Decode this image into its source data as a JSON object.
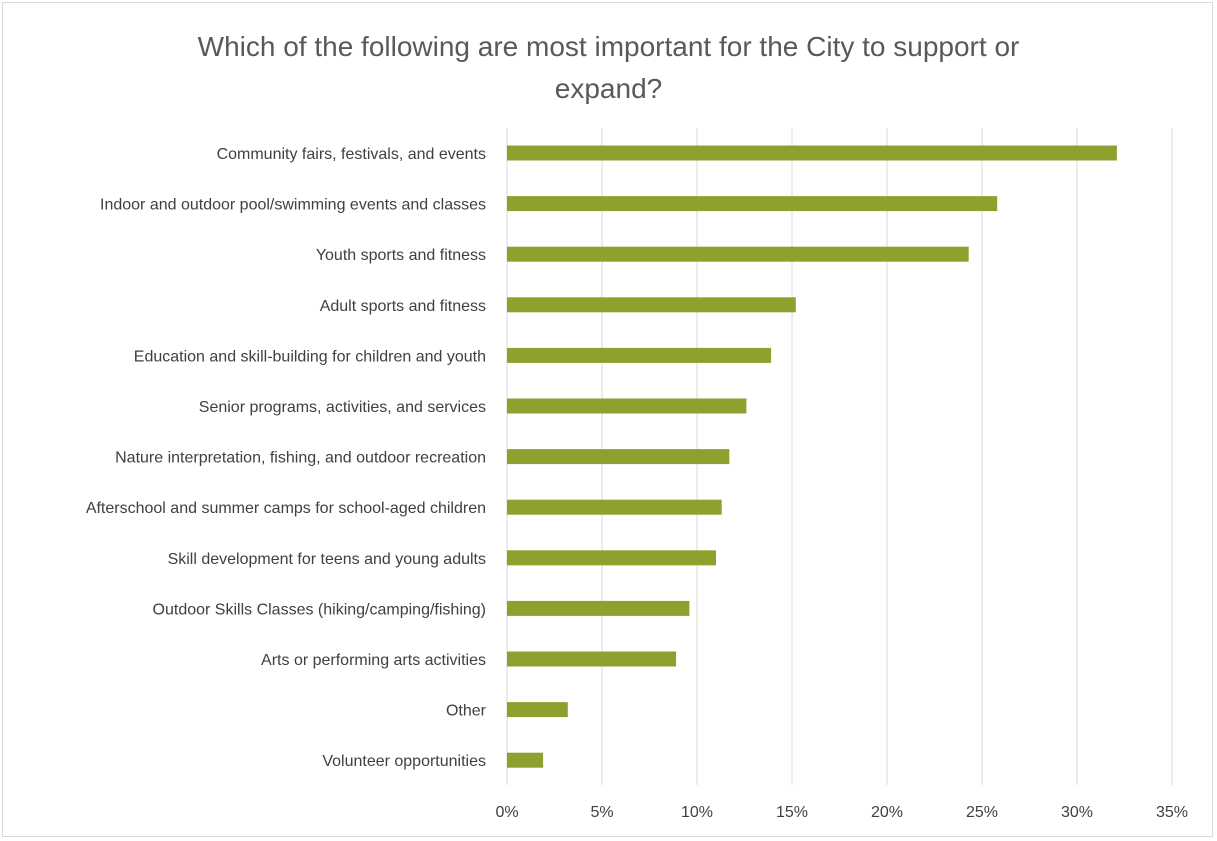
{
  "chart_data": {
    "type": "bar",
    "orientation": "horizontal",
    "title": "Which of the following are most important for the City to support or expand?",
    "categories": [
      "Community fairs, festivals, and events",
      "Indoor and outdoor pool/swimming events and classes",
      "Youth sports and fitness",
      "Adult sports and fitness",
      "Education and skill-building for children and youth",
      "Senior programs, activities, and services",
      "Nature interpretation, fishing, and outdoor recreation",
      "Afterschool and summer camps for school-aged children",
      "Skill development for teens and young adults",
      "Outdoor Skills Classes (hiking/camping/fishing)",
      "Arts or performing arts activities",
      "Other",
      "Volunteer opportunities"
    ],
    "values": [
      32.1,
      25.8,
      24.3,
      15.2,
      13.9,
      12.6,
      11.7,
      11.3,
      11.0,
      9.6,
      8.9,
      3.2,
      1.9
    ],
    "xlim": [
      0,
      35
    ],
    "xticks": [
      0,
      5,
      10,
      15,
      20,
      25,
      30,
      35
    ],
    "xtick_labels": [
      "0%",
      "5%",
      "10%",
      "15%",
      "20%",
      "25%",
      "30%",
      "35%"
    ],
    "xlabel": "",
    "ylabel": "",
    "grid": "vertical",
    "legend": "none",
    "bar_color": "#8da12f",
    "grid_color": "#d9d9d9"
  }
}
